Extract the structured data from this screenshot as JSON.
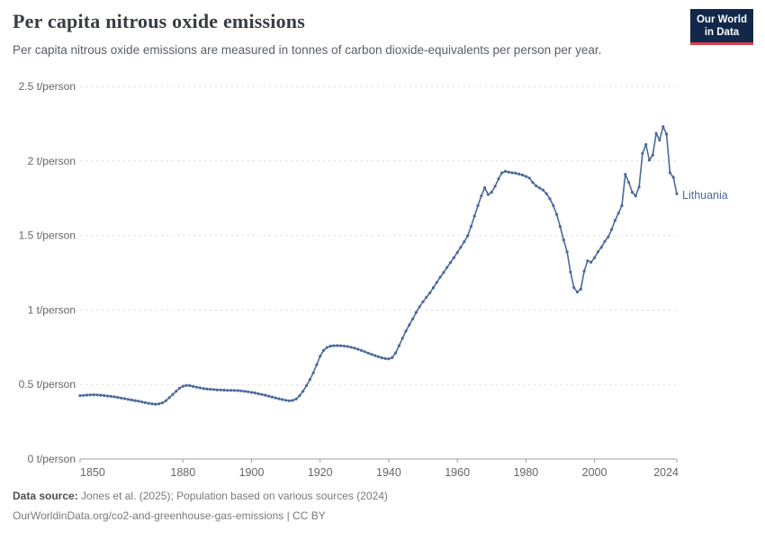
{
  "header": {
    "title": "Per capita nitrous oxide emissions",
    "subtitle": "Per capita nitrous oxide emissions are measured in tonnes of carbon dioxide-equivalents per person per year.",
    "logo": {
      "line1": "Our World",
      "line2": "in Data",
      "bg_color": "#12284a",
      "accent_color": "#d63e4e"
    }
  },
  "chart_data": {
    "type": "line",
    "title": "Per capita nitrous oxide emissions",
    "unit": "t/person",
    "entity_label": "Lithuania",
    "line_color": "#4c6a9c",
    "grid": "horizontal dashed",
    "grid_color": "#dadada",
    "axis_color": "#a1a1a1",
    "tick_label_color": "#666666",
    "xlim": [
      1850,
      2024
    ],
    "ylim": [
      0,
      2.5
    ],
    "x_ticks": [
      1850,
      1880,
      1900,
      1920,
      1940,
      1960,
      1980,
      2000,
      2024
    ],
    "y_ticks": [
      {
        "v": 0,
        "label": "0 t/person"
      },
      {
        "v": 0.5,
        "label": "0.5 t/person"
      },
      {
        "v": 1,
        "label": "1 t/person"
      },
      {
        "v": 1.5,
        "label": "1.5 t/person"
      },
      {
        "v": 2,
        "label": "2 t/person"
      },
      {
        "v": 2.5,
        "label": "2.5 t/person"
      }
    ],
    "series": [
      {
        "name": "Lithuania",
        "x_start": 1850,
        "x_step": 1,
        "values": [
          0.425,
          0.427,
          0.429,
          0.43,
          0.431,
          0.43,
          0.428,
          0.426,
          0.423,
          0.42,
          0.417,
          0.413,
          0.409,
          0.405,
          0.4,
          0.396,
          0.392,
          0.388,
          0.383,
          0.378,
          0.374,
          0.37,
          0.368,
          0.37,
          0.377,
          0.391,
          0.411,
          0.433,
          0.455,
          0.475,
          0.488,
          0.494,
          0.492,
          0.487,
          0.482,
          0.477,
          0.473,
          0.47,
          0.468,
          0.466,
          0.464,
          0.463,
          0.462,
          0.461,
          0.461,
          0.46,
          0.459,
          0.457,
          0.454,
          0.451,
          0.447,
          0.443,
          0.438,
          0.433,
          0.428,
          0.422,
          0.416,
          0.41,
          0.404,
          0.399,
          0.394,
          0.391,
          0.393,
          0.403,
          0.425,
          0.455,
          0.492,
          0.532,
          0.578,
          0.633,
          0.69,
          0.728,
          0.748,
          0.757,
          0.76,
          0.761,
          0.76,
          0.758,
          0.755,
          0.75,
          0.744,
          0.737,
          0.729,
          0.72,
          0.711,
          0.702,
          0.694,
          0.686,
          0.679,
          0.674,
          0.672,
          0.68,
          0.712,
          0.76,
          0.81,
          0.858,
          0.9,
          0.94,
          0.983,
          1.022,
          1.055,
          1.085,
          1.115,
          1.15,
          1.185,
          1.22,
          1.252,
          1.285,
          1.318,
          1.35,
          1.385,
          1.42,
          1.458,
          1.497,
          1.56,
          1.63,
          1.7,
          1.765,
          1.82,
          1.775,
          1.79,
          1.83,
          1.88,
          1.92,
          1.93,
          1.925,
          1.92,
          1.918,
          1.912,
          1.905,
          1.896,
          1.885,
          1.855,
          1.832,
          1.818,
          1.805,
          1.78,
          1.745,
          1.7,
          1.64,
          1.56,
          1.47,
          1.39,
          1.255,
          1.15,
          1.12,
          1.14,
          1.26,
          1.33,
          1.32,
          1.35,
          1.39,
          1.42,
          1.46,
          1.49,
          1.54,
          1.6,
          1.65,
          1.7,
          1.91,
          1.855,
          1.79,
          1.765,
          1.825,
          2.05,
          2.11,
          2.005,
          2.04,
          2.185,
          2.14,
          2.23,
          2.18,
          1.92,
          1.89,
          1.78
        ]
      }
    ]
  },
  "footer": {
    "datasource_label": "Data source:",
    "datasource_text": "Jones et al. (2025); Population based on various sources (2024)",
    "link_line": "OurWorldinData.org/co2-and-greenhouse-gas-emissions | CC BY"
  }
}
